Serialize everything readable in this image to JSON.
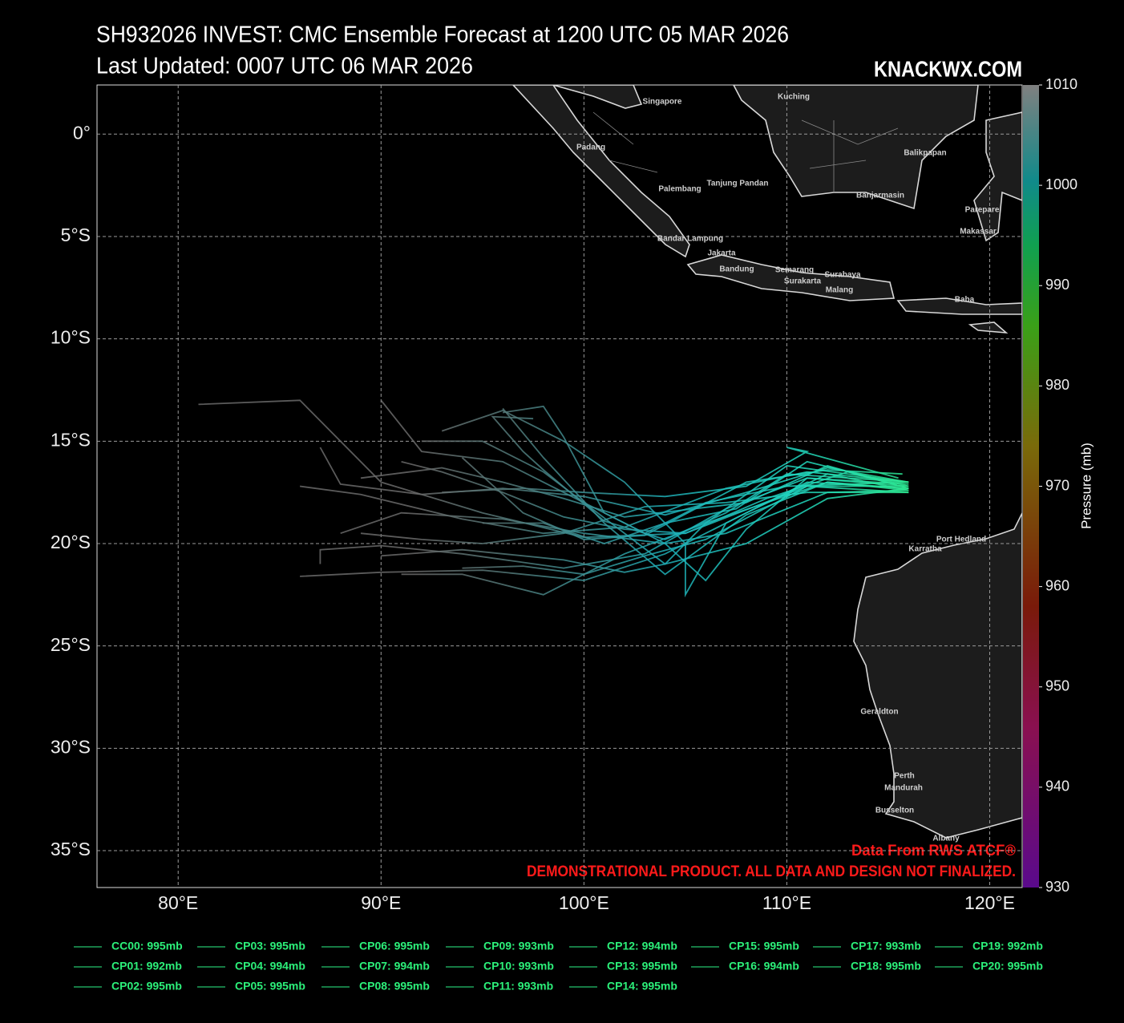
{
  "chart_data": {
    "type": "track",
    "title": "SH932026 INVEST: CMC Ensemble Forecast at 1200 UTC 05 MAR 2026",
    "subtitle": "Last Updated: 0007 UTC 06 MAR 2026",
    "watermark": "KNACKWX.COM",
    "source": "Data From RWS ATCF®",
    "disclaimer": "DEMONSTRATIONAL PRODUCT. ALL DATA AND DESIGN NOT FINALIZED.",
    "xlim": [
      76,
      121.6
    ],
    "ylim": [
      -36.8,
      2.4
    ],
    "xticks": [
      {
        "value": 80,
        "label": "80°E"
      },
      {
        "value": 90,
        "label": "90°E"
      },
      {
        "value": 100,
        "label": "100°E"
      },
      {
        "value": 110,
        "label": "110°E"
      },
      {
        "value": 120,
        "label": "120°E"
      }
    ],
    "yticks": [
      {
        "value": 0,
        "label": "0°"
      },
      {
        "value": -5,
        "label": "5°S"
      },
      {
        "value": -10,
        "label": "10°S"
      },
      {
        "value": -15,
        "label": "15°S"
      },
      {
        "value": -20,
        "label": "20°S"
      },
      {
        "value": -25,
        "label": "25°S"
      },
      {
        "value": -30,
        "label": "30°S"
      },
      {
        "value": -35,
        "label": "35°S"
      }
    ],
    "grid": true,
    "colorbar": {
      "label": "Pressure (mb)",
      "lim": [
        930,
        1010
      ],
      "ticks": [
        930,
        940,
        950,
        960,
        970,
        980,
        990,
        1000,
        1010
      ]
    },
    "places": [
      "Singapore",
      "Kuching",
      "Padang",
      "Palembang",
      "Tanjung Pandan",
      "Balikpapan",
      "Banjarmasin",
      "Parepare",
      "Makassar",
      "Bandar Lampung",
      "Jakarta",
      "Bandung",
      "Semarang",
      "Surabaya",
      "Surakarta",
      "Malang",
      "Baba",
      "Port Hedland",
      "Karratha",
      "Geraldton",
      "Perth",
      "Mandurah",
      "Busselton",
      "Albany"
    ],
    "series": [
      {
        "name": "CC00: 995mb",
        "color": "#1fa35a",
        "x": [
          116,
          113,
          109,
          105,
          100,
          95,
          90,
          86,
          81
        ],
        "values": [
          -17.3,
          -16.5,
          -17.8,
          -19.5,
          -19.7,
          -18.5,
          -17.0,
          -13.0,
          -13.2
        ]
      },
      {
        "name": "CP01: 992mb",
        "color": "#1fa35a",
        "x": [
          116,
          112,
          108,
          104,
          100,
          95,
          90,
          86
        ],
        "values": [
          -17.4,
          -16.6,
          -18.5,
          -20.5,
          -21.8,
          -21.3,
          -21.4,
          -21.6
        ]
      },
      {
        "name": "CP02: 995mb",
        "color": "#1fa35a",
        "x": [
          116,
          111,
          107,
          103,
          99,
          94,
          90,
          87,
          87
        ],
        "values": [
          -17.2,
          -16.8,
          -18.3,
          -20.5,
          -21.2,
          -20.5,
          -20.1,
          -20.3,
          -21
        ]
      },
      {
        "name": "CP03: 995mb",
        "color": "#1fa35a",
        "x": [
          116,
          112,
          108,
          104,
          100,
          96,
          92,
          88,
          87
        ],
        "values": [
          -17.0,
          -16.3,
          -17.5,
          -18.6,
          -17.7,
          -17.3,
          -17.6,
          -17.1,
          -15.3
        ]
      },
      {
        "name": "CP04: 994mb",
        "color": "#1fa35a",
        "x": [
          115.8,
          112,
          106,
          102,
          98,
          94,
          91
        ],
        "values": [
          -17.3,
          -17,
          -19,
          -20.5,
          -22.5,
          -21.5,
          -21.5
        ]
      },
      {
        "name": "CP05: 995mb",
        "color": "#1fa35a",
        "x": [
          116,
          111,
          107,
          103,
          99,
          95,
          92,
          89
        ],
        "values": [
          -17.5,
          -17.5,
          -18,
          -18.2,
          -19.5,
          -20,
          -19.8,
          -19.5
        ]
      },
      {
        "name": "CP06: 995mb",
        "color": "#1fa35a",
        "x": [
          116,
          110,
          106,
          104,
          100,
          96,
          92,
          90
        ],
        "values": [
          -17,
          -16.2,
          -19,
          -21,
          -18,
          -16,
          -15.5,
          -13
        ]
      },
      {
        "name": "CP07: 994mb",
        "color": "#1fa35a",
        "x": [
          116,
          111,
          107,
          105,
          105,
          102,
          99,
          96,
          93
        ],
        "values": [
          -17.3,
          -17,
          -19,
          -22.5,
          -20,
          -17,
          -15,
          -13.5,
          -14.5
        ]
      },
      {
        "name": "CP08: 995mb",
        "color": "#1fa35a",
        "x": [
          116,
          112,
          108,
          104,
          101,
          98,
          96
        ],
        "values": [
          -17.4,
          -17,
          -18.6,
          -21.5,
          -19,
          -15.8,
          -13.4
        ]
      },
      {
        "name": "CP09: 993mb",
        "color": "#1fa35a",
        "x": [
          115.5,
          110,
          111,
          108,
          104,
          100,
          97,
          93
        ],
        "values": [
          -16.8,
          -15.3,
          -15.5,
          -17.2,
          -17.7,
          -17.5,
          -17.3,
          -17.5
        ]
      },
      {
        "name": "CP10: 993mb",
        "color": "#1fa35a",
        "x": [
          116,
          111,
          107,
          102,
          98,
          94,
          89,
          86
        ],
        "values": [
          -17,
          -16.5,
          -17.3,
          -19.2,
          -19.5,
          -18.8,
          -17.6,
          -17.2
        ]
      },
      {
        "name": "CP11: 993mb",
        "color": "#1fa35a",
        "x": [
          116,
          112,
          108,
          102,
          99,
          96,
          93,
          89
        ],
        "values": [
          -17.3,
          -16.2,
          -18,
          -18.7,
          -17.8,
          -17,
          -16.3,
          -16.8
        ]
      },
      {
        "name": "CP12: 994mb",
        "color": "#1fa35a",
        "x": [
          116,
          111,
          108,
          106,
          104,
          101,
          99,
          98,
          96
        ],
        "values": [
          -17.1,
          -16.8,
          -19.3,
          -21.8,
          -20,
          -18.5,
          -14.8,
          -13.3,
          -13.6
        ]
      },
      {
        "name": "CP13: 995mb",
        "color": "#1fa35a",
        "x": [
          116,
          112,
          107,
          104,
          100,
          96,
          91,
          88
        ],
        "values": [
          -17.4,
          -17.5,
          -19.5,
          -20,
          -19.5,
          -18.8,
          -18.5,
          -19.5
        ]
      },
      {
        "name": "CP14: 995mb",
        "color": "#1fa35a",
        "x": [
          115.8,
          111,
          105,
          102,
          99,
          96,
          93,
          91
        ],
        "values": [
          -17.2,
          -17.2,
          -19.5,
          -19.3,
          -18.7,
          -17.5,
          -16.5,
          -16
        ]
      },
      {
        "name": "CP15: 995mb",
        "color": "#1fa35a",
        "x": [
          116,
          110,
          106,
          103,
          100,
          98,
          95,
          92
        ],
        "values": [
          -17,
          -17.2,
          -18,
          -19.5,
          -18,
          -16.5,
          -15,
          -15
        ]
      },
      {
        "name": "CP16: 994mb",
        "color": "#1fa35a",
        "x": [
          116,
          112,
          108,
          104,
          102,
          99,
          94,
          90
        ],
        "values": [
          -17.3,
          -17.8,
          -20,
          -21,
          -21.4,
          -20.8,
          -20.3,
          -20.6
        ]
      },
      {
        "name": "CP17: 993mb",
        "color": "#1fa35a",
        "x": [
          116,
          111,
          106,
          103,
          100,
          97,
          94
        ],
        "values": [
          -17.5,
          -17.2,
          -19.8,
          -20.6,
          -21.5,
          -21.1,
          -21.2
        ]
      },
      {
        "name": "CP18: 995mb",
        "color": "#1fa35a",
        "x": [
          116,
          110,
          107,
          104,
          101,
          98,
          97,
          95.5,
          97.5
        ],
        "values": [
          -17,
          -16.6,
          -18.5,
          -19.8,
          -18.9,
          -16.4,
          -15.5,
          -13.8,
          -13.9
        ]
      },
      {
        "name": "CP19: 992mb",
        "color": "#1fa35a",
        "x": [
          115.7,
          112,
          108,
          103,
          100,
          97,
          94
        ],
        "values": [
          -16.6,
          -16.4,
          -17,
          -19.6,
          -19.8,
          -18.5,
          -15.8
        ]
      },
      {
        "name": "CP20: 995mb",
        "color": "#1fa35a",
        "x": [
          116,
          111,
          107.5,
          104,
          101,
          98,
          95
        ],
        "values": [
          -17.2,
          -16,
          -18.3,
          -19,
          -20,
          -19,
          -19
        ]
      }
    ]
  }
}
